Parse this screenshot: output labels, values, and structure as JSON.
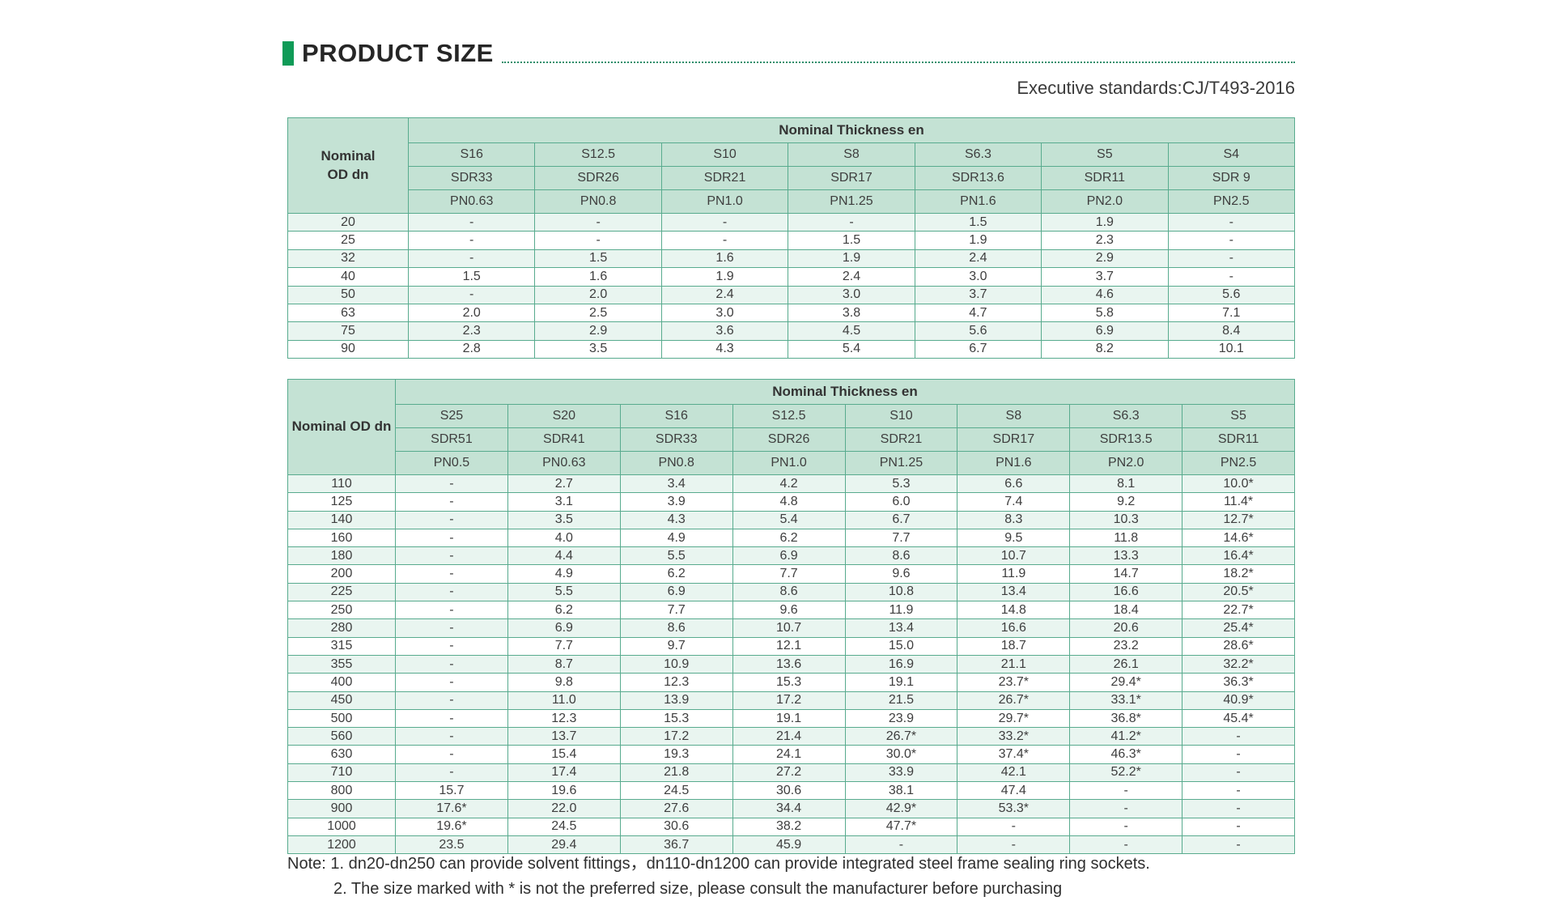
{
  "page": {
    "title": "PRODUCT SIZE",
    "standard": "Executive standards:CJ/T493-2016"
  },
  "colors": {
    "accent_green": "#0f9b57",
    "dotted_line": "#2b8e6b",
    "table_border": "#58ab8e",
    "header_bg": "#c4e2d4",
    "alt_row_bg": "#e9f5f0",
    "text": "#3e3e3e"
  },
  "tables": [
    {
      "corner": "Nominal\nOD dn",
      "header": "Nominal Thickness en",
      "s": [
        "S16",
        "S12.5",
        "S10",
        "S8",
        "S6.3",
        "S5",
        "S4"
      ],
      "sdr": [
        "SDR33",
        "SDR26",
        "SDR21",
        "SDR17",
        "SDR13.6",
        "SDR11",
        "SDR 9"
      ],
      "pn": [
        "PN0.63",
        "PN0.8",
        "PN1.0",
        "PN1.25",
        "PN1.6",
        "PN2.0",
        "PN2.5"
      ],
      "rows": [
        {
          "dn": "20",
          "en": [
            "-",
            "-",
            "-",
            "-",
            "1.5",
            "1.9",
            "-"
          ]
        },
        {
          "dn": "25",
          "en": [
            "-",
            "-",
            "-",
            "1.5",
            "1.9",
            "2.3",
            "-"
          ]
        },
        {
          "dn": "32",
          "en": [
            "-",
            "1.5",
            "1.6",
            "1.9",
            "2.4",
            "2.9",
            "-"
          ]
        },
        {
          "dn": "40",
          "en": [
            "1.5",
            "1.6",
            "1.9",
            "2.4",
            "3.0",
            "3.7",
            "-"
          ]
        },
        {
          "dn": "50",
          "en": [
            "-",
            "2.0",
            "2.4",
            "3.0",
            "3.7",
            "4.6",
            "5.6"
          ]
        },
        {
          "dn": "63",
          "en": [
            "2.0",
            "2.5",
            "3.0",
            "3.8",
            "4.7",
            "5.8",
            "7.1"
          ]
        },
        {
          "dn": "75",
          "en": [
            "2.3",
            "2.9",
            "3.6",
            "4.5",
            "5.6",
            "6.9",
            "8.4"
          ]
        },
        {
          "dn": "90",
          "en": [
            "2.8",
            "3.5",
            "4.3",
            "5.4",
            "6.7",
            "8.2",
            "10.1"
          ]
        }
      ]
    },
    {
      "corner": "Nominal OD dn",
      "header": "Nominal Thickness en",
      "s": [
        "S25",
        "S20",
        "S16",
        "S12.5",
        "S10",
        "S8",
        "S6.3",
        "S5"
      ],
      "sdr": [
        "SDR51",
        "SDR41",
        "SDR33",
        "SDR26",
        "SDR21",
        "SDR17",
        "SDR13.5",
        "SDR11"
      ],
      "pn": [
        "PN0.5",
        "PN0.63",
        "PN0.8",
        "PN1.0",
        "PN1.25",
        "PN1.6",
        "PN2.0",
        "PN2.5"
      ],
      "rows": [
        {
          "dn": "110",
          "en": [
            "-",
            "2.7",
            "3.4",
            "4.2",
            "5.3",
            "6.6",
            "8.1",
            "10.0*"
          ]
        },
        {
          "dn": "125",
          "en": [
            "-",
            "3.1",
            "3.9",
            "4.8",
            "6.0",
            "7.4",
            "9.2",
            "11.4*"
          ]
        },
        {
          "dn": "140",
          "en": [
            "-",
            "3.5",
            "4.3",
            "5.4",
            "6.7",
            "8.3",
            "10.3",
            "12.7*"
          ]
        },
        {
          "dn": "160",
          "en": [
            "-",
            "4.0",
            "4.9",
            "6.2",
            "7.7",
            "9.5",
            "11.8",
            "14.6*"
          ]
        },
        {
          "dn": "180",
          "en": [
            "-",
            "4.4",
            "5.5",
            "6.9",
            "8.6",
            "10.7",
            "13.3",
            "16.4*"
          ]
        },
        {
          "dn": "200",
          "en": [
            "-",
            "4.9",
            "6.2",
            "7.7",
            "9.6",
            "11.9",
            "14.7",
            "18.2*"
          ]
        },
        {
          "dn": "225",
          "en": [
            "-",
            "5.5",
            "6.9",
            "8.6",
            "10.8",
            "13.4",
            "16.6",
            "20.5*"
          ]
        },
        {
          "dn": "250",
          "en": [
            "-",
            "6.2",
            "7.7",
            "9.6",
            "11.9",
            "14.8",
            "18.4",
            "22.7*"
          ]
        },
        {
          "dn": "280",
          "en": [
            "-",
            "6.9",
            "8.6",
            "10.7",
            "13.4",
            "16.6",
            "20.6",
            "25.4*"
          ]
        },
        {
          "dn": "315",
          "en": [
            "-",
            "7.7",
            "9.7",
            "12.1",
            "15.0",
            "18.7",
            "23.2",
            "28.6*"
          ]
        },
        {
          "dn": "355",
          "en": [
            "-",
            "8.7",
            "10.9",
            "13.6",
            "16.9",
            "21.1",
            "26.1",
            "32.2*"
          ]
        },
        {
          "dn": "400",
          "en": [
            "-",
            "9.8",
            "12.3",
            "15.3",
            "19.1",
            "23.7*",
            "29.4*",
            "36.3*"
          ]
        },
        {
          "dn": "450",
          "en": [
            "-",
            "11.0",
            "13.9",
            "17.2",
            "21.5",
            "26.7*",
            "33.1*",
            "40.9*"
          ]
        },
        {
          "dn": "500",
          "en": [
            "-",
            "12.3",
            "15.3",
            "19.1",
            "23.9",
            "29.7*",
            "36.8*",
            "45.4*"
          ]
        },
        {
          "dn": "560",
          "en": [
            "-",
            "13.7",
            "17.2",
            "21.4",
            "26.7*",
            "33.2*",
            "41.2*",
            "-"
          ]
        },
        {
          "dn": "630",
          "en": [
            "-",
            "15.4",
            "19.3",
            "24.1",
            "30.0*",
            "37.4*",
            "46.3*",
            "-"
          ]
        },
        {
          "dn": "710",
          "en": [
            "-",
            "17.4",
            "21.8",
            "27.2",
            "33.9",
            "42.1",
            "52.2*",
            "-"
          ]
        },
        {
          "dn": "800",
          "en": [
            "15.7",
            "19.6",
            "24.5",
            "30.6",
            "38.1",
            "47.4",
            "-",
            "-"
          ]
        },
        {
          "dn": "900",
          "en": [
            "17.6*",
            "22.0",
            "27.6",
            "34.4",
            "42.9*",
            "53.3*",
            "-",
            "-"
          ]
        },
        {
          "dn": "1000",
          "en": [
            "19.6*",
            "24.5",
            "30.6",
            "38.2",
            "47.7*",
            "-",
            "-",
            "-"
          ]
        },
        {
          "dn": "1200",
          "en": [
            "23.5",
            "29.4",
            "36.7",
            "45.9",
            "-",
            "-",
            "-",
            "-"
          ]
        }
      ]
    }
  ],
  "notes": [
    "Note: 1. dn20-dn250 can provide solvent fittings，dn110-dn1200 can provide integrated steel frame sealing ring sockets.",
    "2. The size marked with * is not the preferred size, please consult the manufacturer before purchasing"
  ]
}
